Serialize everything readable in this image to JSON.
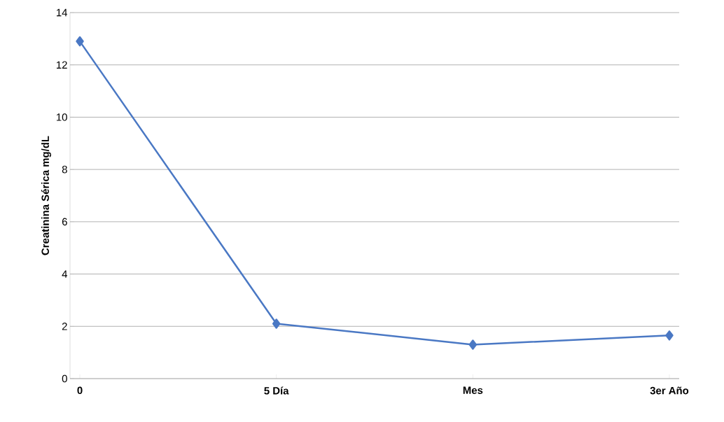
{
  "chart_data": {
    "type": "line",
    "ylabel": "Creatinina Sérica mg/dL",
    "categories": [
      "0",
      "5 Día",
      "Mes",
      "3er Año"
    ],
    "series": [
      {
        "color": "#4a78c4",
        "values": [
          12.9,
          2.1,
          1.3,
          1.65
        ]
      }
    ],
    "ylim": [
      0,
      14
    ],
    "yticks": [
      0,
      2,
      4,
      6,
      8,
      10,
      12,
      14
    ],
    "grid": "y",
    "marker": "diamond",
    "line_style": "solid"
  }
}
